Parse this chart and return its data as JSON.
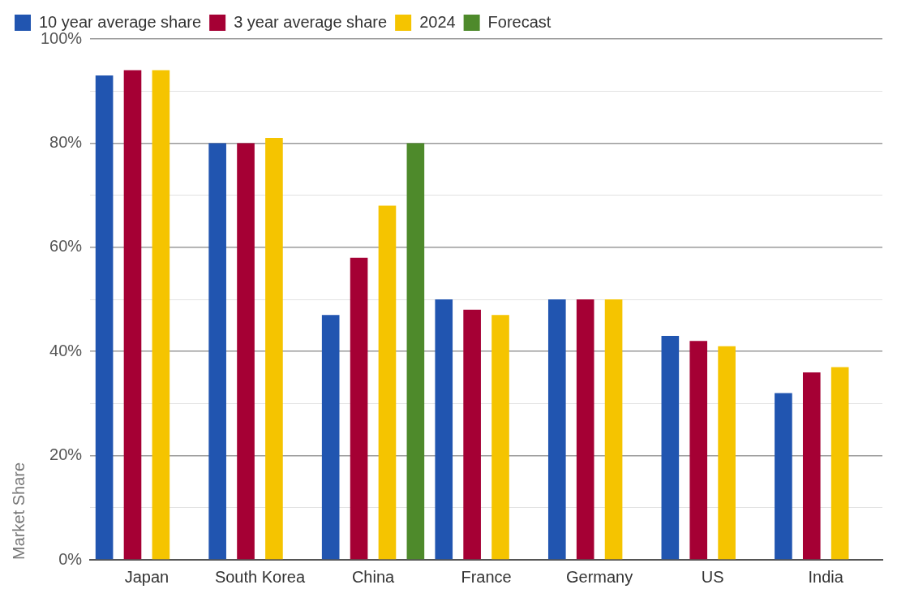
{
  "chart_data": {
    "type": "bar",
    "ylabel": "Market Share",
    "categories": [
      "Japan",
      "South Korea",
      "China",
      "France",
      "Germany",
      "US",
      "India"
    ],
    "series": [
      {
        "name": "10 year average share",
        "color": "#2155b0",
        "values": [
          93,
          80,
          47,
          50,
          50,
          43,
          32
        ]
      },
      {
        "name": "3 year average share",
        "color": "#a50034",
        "values": [
          94,
          80,
          58,
          48,
          50,
          42,
          36
        ]
      },
      {
        "name": "2024",
        "color": "#f5c400",
        "values": [
          94,
          81,
          68,
          47,
          50,
          41,
          37
        ]
      },
      {
        "name": "Forecast",
        "color": "#4e8a2b",
        "values": [
          null,
          null,
          80,
          null,
          null,
          null,
          null
        ]
      }
    ],
    "ylim": [
      0,
      100
    ],
    "yticks": [
      {
        "value": 0,
        "label": "0%"
      },
      {
        "value": 10,
        "label": null
      },
      {
        "value": 20,
        "label": "20%"
      },
      {
        "value": 30,
        "label": null
      },
      {
        "value": 40,
        "label": "40%"
      },
      {
        "value": 50,
        "label": null
      },
      {
        "value": 60,
        "label": "60%"
      },
      {
        "value": 70,
        "label": null
      },
      {
        "value": 80,
        "label": "80%"
      },
      {
        "value": 90,
        "label": null
      },
      {
        "value": 100,
        "label": "100%"
      }
    ],
    "grid": "y",
    "legend": "top left"
  }
}
